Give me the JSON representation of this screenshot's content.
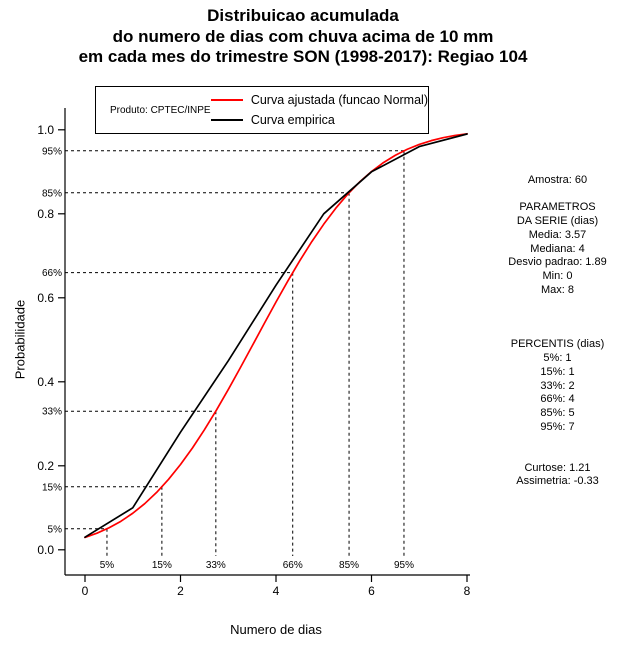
{
  "title": {
    "line1": "Distribuicao acumulada",
    "line2": "do numero de dias com chuva acima de 10 mm",
    "line3": "em cada mes do trimestre SON (1998-2017): Regiao 104"
  },
  "legend": {
    "product_label": "Produto: CPTEC/INPE",
    "entries": [
      {
        "label": "Curva ajustada (funcao Normal)",
        "color": "#ff0000"
      },
      {
        "label": "Curva empirica",
        "color": "#000000"
      }
    ]
  },
  "axes": {
    "x_label": "Numero de dias",
    "y_label": "Probabilidade",
    "x_ticks": [
      0,
      2,
      4,
      6,
      8
    ],
    "y_ticks": [
      "0.0",
      "0.2",
      "0.4",
      "0.6",
      "0.8",
      "1.0"
    ]
  },
  "stats_panel": {
    "lines": [
      "Amostra: 60",
      "",
      "PARAMETROS",
      "DA SERIE (dias)",
      "Media: 3.57",
      "Mediana: 4",
      "Desvio padrao: 1.89",
      "Min: 0",
      "Max: 8",
      "",
      "",
      "",
      "PERCENTIS (dias)",
      "5%: 1",
      "15%: 1",
      "33%: 2",
      "66%: 4",
      "85%: 5",
      "95%: 7",
      "",
      "",
      "Curtose: 1.21",
      "Assimetria: -0.33"
    ]
  },
  "chart_data": {
    "type": "line",
    "title": "Distribuicao acumulada do numero de dias com chuva acima de 10 mm em cada mes do trimestre SON (1998-2017): Regiao 104",
    "xlabel": "Numero de dias",
    "ylabel": "Probabilidade",
    "xlim": [
      0,
      8
    ],
    "ylim": [
      0,
      1
    ],
    "grid": false,
    "legend_position": "top",
    "fitted_distribution": {
      "name": "Normal",
      "mean": 3.57,
      "sd": 1.89
    },
    "series": [
      {
        "name": "Curva ajustada (funcao Normal)",
        "color": "#ff0000",
        "x": [
          0,
          0.25,
          0.5,
          0.75,
          1,
          1.25,
          1.5,
          1.75,
          2,
          2.25,
          2.5,
          2.75,
          3,
          3.25,
          3.5,
          3.75,
          4,
          4.25,
          4.5,
          4.75,
          5,
          5.25,
          5.5,
          5.75,
          6,
          6.25,
          6.5,
          6.75,
          7,
          7.25,
          7.5,
          7.75,
          8
        ],
        "y": [
          0.0295,
          0.0395,
          0.0522,
          0.0678,
          0.087,
          0.1098,
          0.1367,
          0.1678,
          0.2031,
          0.2424,
          0.2857,
          0.3322,
          0.3815,
          0.4328,
          0.4852,
          0.5379,
          0.59,
          0.6405,
          0.6887,
          0.7338,
          0.7753,
          0.813,
          0.8464,
          0.8756,
          0.9007,
          0.9219,
          0.9394,
          0.9537,
          0.9652,
          0.9742,
          0.9812,
          0.9866,
          0.9905
        ]
      },
      {
        "name": "Curva empirica",
        "color": "#000000",
        "x": [
          0,
          1,
          2,
          3,
          4,
          5,
          6,
          7,
          8
        ],
        "y": [
          0.03,
          0.1,
          0.28,
          0.45,
          0.63,
          0.8,
          0.9,
          0.96,
          0.99
        ]
      }
    ],
    "percentile_guides": [
      {
        "label": "5%",
        "p": 0.05,
        "x": 0.46
      },
      {
        "label": "15%",
        "p": 0.15,
        "x": 1.61
      },
      {
        "label": "33%",
        "p": 0.33,
        "x": 2.74
      },
      {
        "label": "66%",
        "p": 0.66,
        "x": 4.35
      },
      {
        "label": "85%",
        "p": 0.85,
        "x": 5.53
      },
      {
        "label": "95%",
        "p": 0.95,
        "x": 6.68
      }
    ]
  }
}
